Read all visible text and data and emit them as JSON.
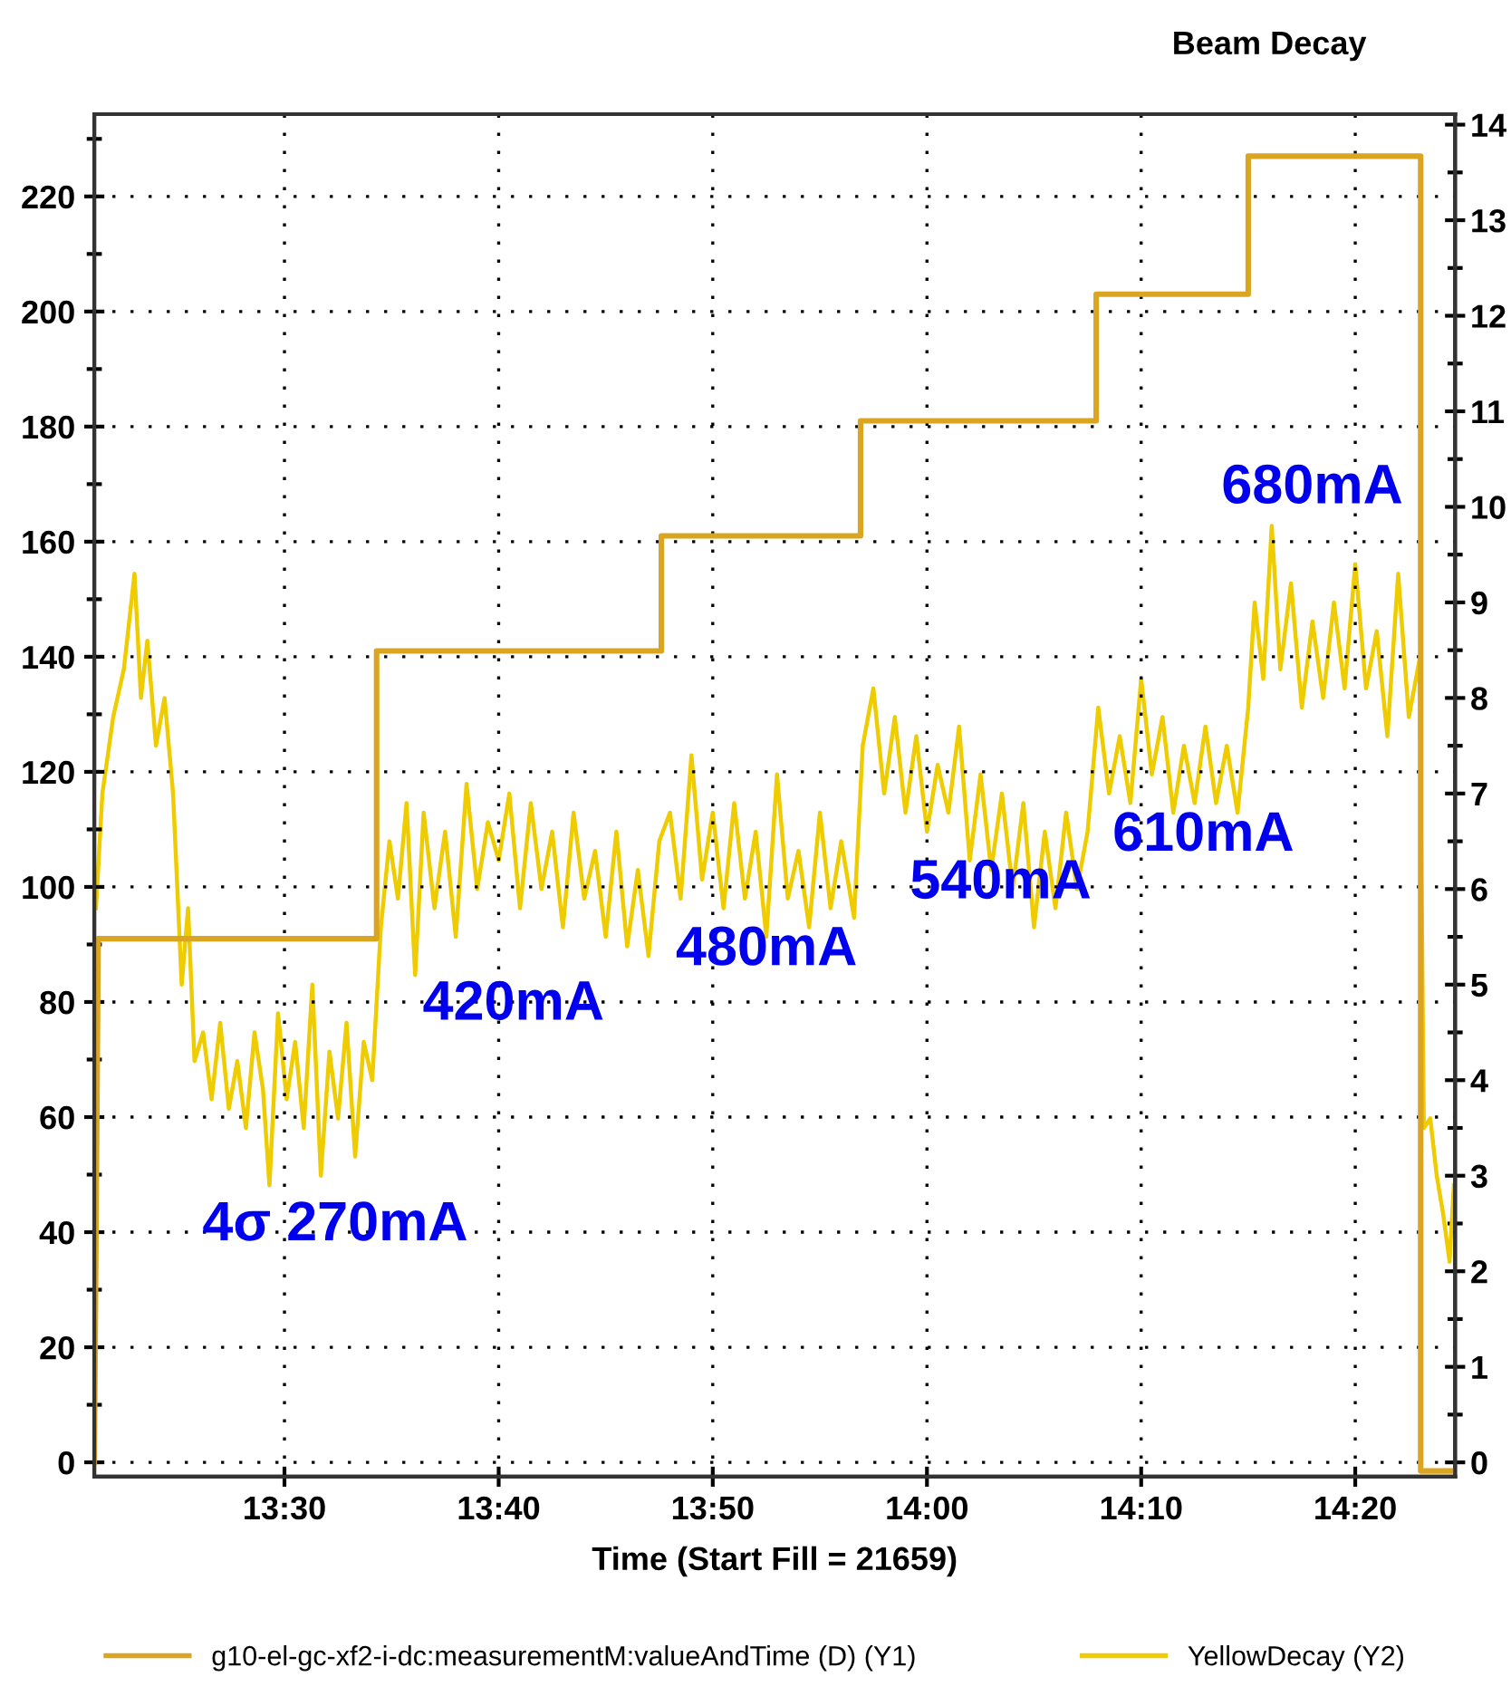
{
  "chart_data": {
    "type": "line",
    "title": "Beam Decay",
    "xlabel": "Time (Start Fill = 21659)",
    "xlim": [
      13.352,
      14.411
    ],
    "xticks": [
      {
        "value": 13.5,
        "label": "13:30"
      },
      {
        "value": 13.6667,
        "label": "13:40"
      },
      {
        "value": 13.8333,
        "label": "13:50"
      },
      {
        "value": 14.0,
        "label": "14:00"
      },
      {
        "value": 14.1667,
        "label": "14:10"
      },
      {
        "value": 14.3333,
        "label": "14:20"
      }
    ],
    "ylim": [
      -2.5,
      234.3
    ],
    "yticks": [
      0,
      {
        "value": 10,
        "label": null
      },
      20,
      {
        "value": 30,
        "label": null
      },
      40,
      {
        "value": 50,
        "label": null
      },
      60,
      {
        "value": 70,
        "label": null
      },
      80,
      {
        "value": 90,
        "label": null
      },
      100,
      {
        "value": 110,
        "label": null
      },
      120,
      {
        "value": 130,
        "label": null
      },
      140,
      {
        "value": 150,
        "label": null
      },
      160,
      {
        "value": 170,
        "label": null
      },
      180,
      {
        "value": 190,
        "label": null
      },
      200,
      {
        "value": 210,
        "label": null
      },
      220,
      {
        "value": 230,
        "label": null
      }
    ],
    "y2lim": [
      -0.15,
      14.11
    ],
    "y2ticks": [
      0,
      {
        "value": 0.5,
        "label": null
      },
      1,
      {
        "value": 1.5,
        "label": null
      },
      2,
      {
        "value": 2.5,
        "label": null
      },
      3,
      {
        "value": 3.5,
        "label": null
      },
      4,
      {
        "value": 4.5,
        "label": null
      },
      5,
      {
        "value": 5.5,
        "label": null
      },
      6,
      {
        "value": 6.5,
        "label": null
      },
      7,
      {
        "value": 7.5,
        "label": null
      },
      8,
      {
        "value": 8.5,
        "label": null
      },
      9,
      {
        "value": 9.5,
        "label": null
      },
      10,
      {
        "value": 10.5,
        "label": null
      },
      11,
      {
        "value": 11.5,
        "label": null
      },
      12,
      {
        "value": 12.5,
        "label": null
      },
      13,
      {
        "value": 13.5,
        "label": null
      },
      14
    ],
    "grid": true,
    "legend": "bottom",
    "marker": "none",
    "line_style": "solid",
    "series": [
      {
        "name": "g10-el-gc-xf2-i-dc:measurementM:valueAndTime (D) (Y1)",
        "color": "#daa520",
        "axis": "y",
        "x": [
          13.352,
          13.355,
          13.5717,
          13.5717,
          13.7933,
          13.7933,
          13.9483,
          13.9483,
          14.1317,
          14.1317,
          14.25,
          14.25,
          14.3842,
          14.3842,
          14.411
        ],
        "values": [
          0,
          91,
          91,
          141,
          141,
          161,
          161,
          181,
          181,
          203,
          203,
          227,
          227,
          -1.5,
          -1.5
        ]
      },
      {
        "name": "YellowDecay (Y2)",
        "color": "#eecc00",
        "axis": "y2",
        "x": [
          13.3533,
          13.3583,
          13.3667,
          13.375,
          13.3833,
          13.3883,
          13.3933,
          13.4,
          13.4067,
          13.4133,
          13.42,
          13.425,
          13.43,
          13.4367,
          13.4433,
          13.45,
          13.4567,
          13.4633,
          13.47,
          13.4767,
          13.4833,
          13.4883,
          13.495,
          13.5017,
          13.5083,
          13.515,
          13.5217,
          13.5283,
          13.535,
          13.5417,
          13.5483,
          13.555,
          13.5617,
          13.5683,
          13.575,
          13.5817,
          13.5883,
          13.595,
          13.6017,
          13.6083,
          13.6167,
          13.625,
          13.6333,
          13.6417,
          13.65,
          13.6583,
          13.6667,
          13.675,
          13.6833,
          13.6917,
          13.7,
          13.7083,
          13.7167,
          13.725,
          13.7333,
          13.7417,
          13.75,
          13.7583,
          13.7667,
          13.775,
          13.7833,
          13.7917,
          13.8,
          13.8083,
          13.8167,
          13.825,
          13.8333,
          13.8417,
          13.85,
          13.8583,
          13.8667,
          13.875,
          13.8833,
          13.8917,
          13.9,
          13.9083,
          13.9167,
          13.925,
          13.9333,
          13.9433,
          13.95,
          13.9583,
          13.9667,
          13.975,
          13.9833,
          13.9917,
          14.0,
          14.0083,
          14.0167,
          14.025,
          14.0333,
          14.0417,
          14.05,
          14.0583,
          14.0667,
          14.075,
          14.0833,
          14.0917,
          14.1,
          14.1083,
          14.1167,
          14.125,
          14.1333,
          14.1417,
          14.15,
          14.1583,
          14.1667,
          14.175,
          14.1833,
          14.1917,
          14.2,
          14.2083,
          14.2167,
          14.225,
          14.2333,
          14.2417,
          14.25,
          14.255,
          14.2617,
          14.2683,
          14.275,
          14.2833,
          14.2917,
          14.3,
          14.3083,
          14.3167,
          14.325,
          14.3333,
          14.3417,
          14.35,
          14.3583,
          14.3667,
          14.375,
          14.3833,
          14.3867,
          14.3917,
          14.3967,
          14.4017,
          14.4067,
          14.41
        ],
        "values": [
          5.8,
          7.0,
          7.8,
          8.3,
          9.3,
          8.0,
          8.6,
          7.5,
          8.0,
          7.0,
          5.0,
          5.8,
          4.2,
          4.5,
          3.8,
          4.6,
          3.7,
          4.2,
          3.5,
          4.5,
          3.9,
          2.9,
          4.7,
          3.8,
          4.4,
          3.5,
          5.0,
          3.0,
          4.3,
          3.6,
          4.6,
          3.2,
          4.4,
          4.0,
          5.6,
          6.5,
          5.9,
          6.9,
          5.1,
          6.8,
          5.8,
          6.6,
          5.5,
          7.1,
          6.0,
          6.7,
          6.3,
          7.0,
          5.8,
          6.9,
          6.0,
          6.6,
          5.6,
          6.8,
          5.9,
          6.4,
          5.5,
          6.6,
          5.4,
          6.2,
          5.3,
          6.5,
          6.8,
          5.9,
          7.4,
          6.1,
          6.8,
          5.8,
          6.9,
          5.9,
          6.6,
          5.5,
          7.2,
          5.9,
          6.4,
          5.6,
          6.8,
          5.8,
          6.5,
          5.7,
          7.5,
          8.1,
          7.0,
          7.8,
          6.8,
          7.6,
          6.6,
          7.3,
          6.8,
          7.7,
          6.3,
          7.2,
          6.2,
          7.0,
          6.0,
          6.9,
          5.6,
          6.6,
          5.8,
          6.8,
          6.0,
          6.6,
          7.9,
          7.0,
          7.6,
          6.9,
          8.2,
          7.2,
          7.8,
          6.8,
          7.5,
          6.9,
          7.7,
          6.9,
          7.5,
          6.8,
          7.9,
          9.0,
          8.2,
          9.8,
          8.3,
          9.2,
          7.9,
          8.8,
          8.0,
          9.0,
          8.1,
          9.4,
          8.1,
          8.7,
          7.6,
          9.3,
          7.8,
          8.4,
          3.5,
          3.6,
          3.0,
          2.6,
          2.1,
          2.9
        ]
      }
    ],
    "annotations": [
      "4σ 270mA",
      "420mA",
      "480mA",
      "540mA",
      "610mA",
      "680mA"
    ]
  }
}
